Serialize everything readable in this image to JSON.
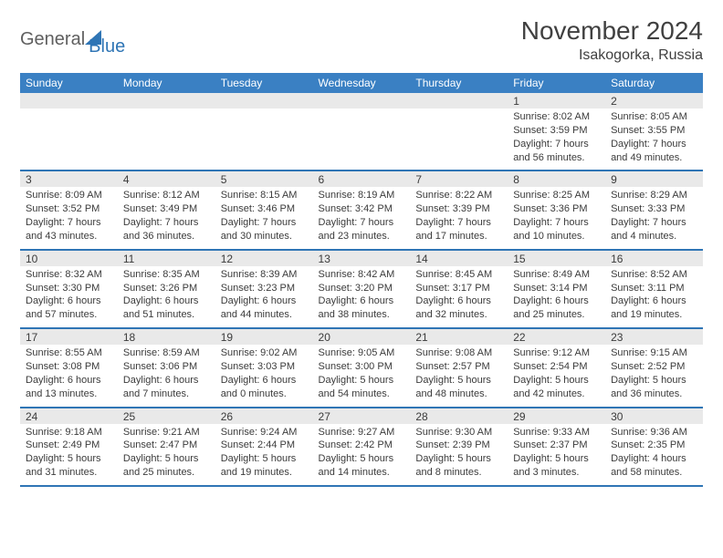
{
  "brand": {
    "part1": "General",
    "part2": "Blue"
  },
  "title": "November 2024",
  "location": "Isakogorka, Russia",
  "day_headers": [
    "Sunday",
    "Monday",
    "Tuesday",
    "Wednesday",
    "Thursday",
    "Friday",
    "Saturday"
  ],
  "colors": {
    "header_bg": "#3a80c3",
    "accent": "#2f75b5",
    "date_bg": "#e9e9e9"
  },
  "weeks": [
    {
      "dates": [
        "",
        "",
        "",
        "",
        "",
        "1",
        "2"
      ],
      "infos": [
        {
          "sunrise": "",
          "sunset": "",
          "daylight": ""
        },
        {
          "sunrise": "",
          "sunset": "",
          "daylight": ""
        },
        {
          "sunrise": "",
          "sunset": "",
          "daylight": ""
        },
        {
          "sunrise": "",
          "sunset": "",
          "daylight": ""
        },
        {
          "sunrise": "",
          "sunset": "",
          "daylight": ""
        },
        {
          "sunrise": "Sunrise: 8:02 AM",
          "sunset": "Sunset: 3:59 PM",
          "daylight": "Daylight: 7 hours and 56 minutes."
        },
        {
          "sunrise": "Sunrise: 8:05 AM",
          "sunset": "Sunset: 3:55 PM",
          "daylight": "Daylight: 7 hours and 49 minutes."
        }
      ]
    },
    {
      "dates": [
        "3",
        "4",
        "5",
        "6",
        "7",
        "8",
        "9"
      ],
      "infos": [
        {
          "sunrise": "Sunrise: 8:09 AM",
          "sunset": "Sunset: 3:52 PM",
          "daylight": "Daylight: 7 hours and 43 minutes."
        },
        {
          "sunrise": "Sunrise: 8:12 AM",
          "sunset": "Sunset: 3:49 PM",
          "daylight": "Daylight: 7 hours and 36 minutes."
        },
        {
          "sunrise": "Sunrise: 8:15 AM",
          "sunset": "Sunset: 3:46 PM",
          "daylight": "Daylight: 7 hours and 30 minutes."
        },
        {
          "sunrise": "Sunrise: 8:19 AM",
          "sunset": "Sunset: 3:42 PM",
          "daylight": "Daylight: 7 hours and 23 minutes."
        },
        {
          "sunrise": "Sunrise: 8:22 AM",
          "sunset": "Sunset: 3:39 PM",
          "daylight": "Daylight: 7 hours and 17 minutes."
        },
        {
          "sunrise": "Sunrise: 8:25 AM",
          "sunset": "Sunset: 3:36 PM",
          "daylight": "Daylight: 7 hours and 10 minutes."
        },
        {
          "sunrise": "Sunrise: 8:29 AM",
          "sunset": "Sunset: 3:33 PM",
          "daylight": "Daylight: 7 hours and 4 minutes."
        }
      ]
    },
    {
      "dates": [
        "10",
        "11",
        "12",
        "13",
        "14",
        "15",
        "16"
      ],
      "infos": [
        {
          "sunrise": "Sunrise: 8:32 AM",
          "sunset": "Sunset: 3:30 PM",
          "daylight": "Daylight: 6 hours and 57 minutes."
        },
        {
          "sunrise": "Sunrise: 8:35 AM",
          "sunset": "Sunset: 3:26 PM",
          "daylight": "Daylight: 6 hours and 51 minutes."
        },
        {
          "sunrise": "Sunrise: 8:39 AM",
          "sunset": "Sunset: 3:23 PM",
          "daylight": "Daylight: 6 hours and 44 minutes."
        },
        {
          "sunrise": "Sunrise: 8:42 AM",
          "sunset": "Sunset: 3:20 PM",
          "daylight": "Daylight: 6 hours and 38 minutes."
        },
        {
          "sunrise": "Sunrise: 8:45 AM",
          "sunset": "Sunset: 3:17 PM",
          "daylight": "Daylight: 6 hours and 32 minutes."
        },
        {
          "sunrise": "Sunrise: 8:49 AM",
          "sunset": "Sunset: 3:14 PM",
          "daylight": "Daylight: 6 hours and 25 minutes."
        },
        {
          "sunrise": "Sunrise: 8:52 AM",
          "sunset": "Sunset: 3:11 PM",
          "daylight": "Daylight: 6 hours and 19 minutes."
        }
      ]
    },
    {
      "dates": [
        "17",
        "18",
        "19",
        "20",
        "21",
        "22",
        "23"
      ],
      "infos": [
        {
          "sunrise": "Sunrise: 8:55 AM",
          "sunset": "Sunset: 3:08 PM",
          "daylight": "Daylight: 6 hours and 13 minutes."
        },
        {
          "sunrise": "Sunrise: 8:59 AM",
          "sunset": "Sunset: 3:06 PM",
          "daylight": "Daylight: 6 hours and 7 minutes."
        },
        {
          "sunrise": "Sunrise: 9:02 AM",
          "sunset": "Sunset: 3:03 PM",
          "daylight": "Daylight: 6 hours and 0 minutes."
        },
        {
          "sunrise": "Sunrise: 9:05 AM",
          "sunset": "Sunset: 3:00 PM",
          "daylight": "Daylight: 5 hours and 54 minutes."
        },
        {
          "sunrise": "Sunrise: 9:08 AM",
          "sunset": "Sunset: 2:57 PM",
          "daylight": "Daylight: 5 hours and 48 minutes."
        },
        {
          "sunrise": "Sunrise: 9:12 AM",
          "sunset": "Sunset: 2:54 PM",
          "daylight": "Daylight: 5 hours and 42 minutes."
        },
        {
          "sunrise": "Sunrise: 9:15 AM",
          "sunset": "Sunset: 2:52 PM",
          "daylight": "Daylight: 5 hours and 36 minutes."
        }
      ]
    },
    {
      "dates": [
        "24",
        "25",
        "26",
        "27",
        "28",
        "29",
        "30"
      ],
      "infos": [
        {
          "sunrise": "Sunrise: 9:18 AM",
          "sunset": "Sunset: 2:49 PM",
          "daylight": "Daylight: 5 hours and 31 minutes."
        },
        {
          "sunrise": "Sunrise: 9:21 AM",
          "sunset": "Sunset: 2:47 PM",
          "daylight": "Daylight: 5 hours and 25 minutes."
        },
        {
          "sunrise": "Sunrise: 9:24 AM",
          "sunset": "Sunset: 2:44 PM",
          "daylight": "Daylight: 5 hours and 19 minutes."
        },
        {
          "sunrise": "Sunrise: 9:27 AM",
          "sunset": "Sunset: 2:42 PM",
          "daylight": "Daylight: 5 hours and 14 minutes."
        },
        {
          "sunrise": "Sunrise: 9:30 AM",
          "sunset": "Sunset: 2:39 PM",
          "daylight": "Daylight: 5 hours and 8 minutes."
        },
        {
          "sunrise": "Sunrise: 9:33 AM",
          "sunset": "Sunset: 2:37 PM",
          "daylight": "Daylight: 5 hours and 3 minutes."
        },
        {
          "sunrise": "Sunrise: 9:36 AM",
          "sunset": "Sunset: 2:35 PM",
          "daylight": "Daylight: 4 hours and 58 minutes."
        }
      ]
    }
  ]
}
